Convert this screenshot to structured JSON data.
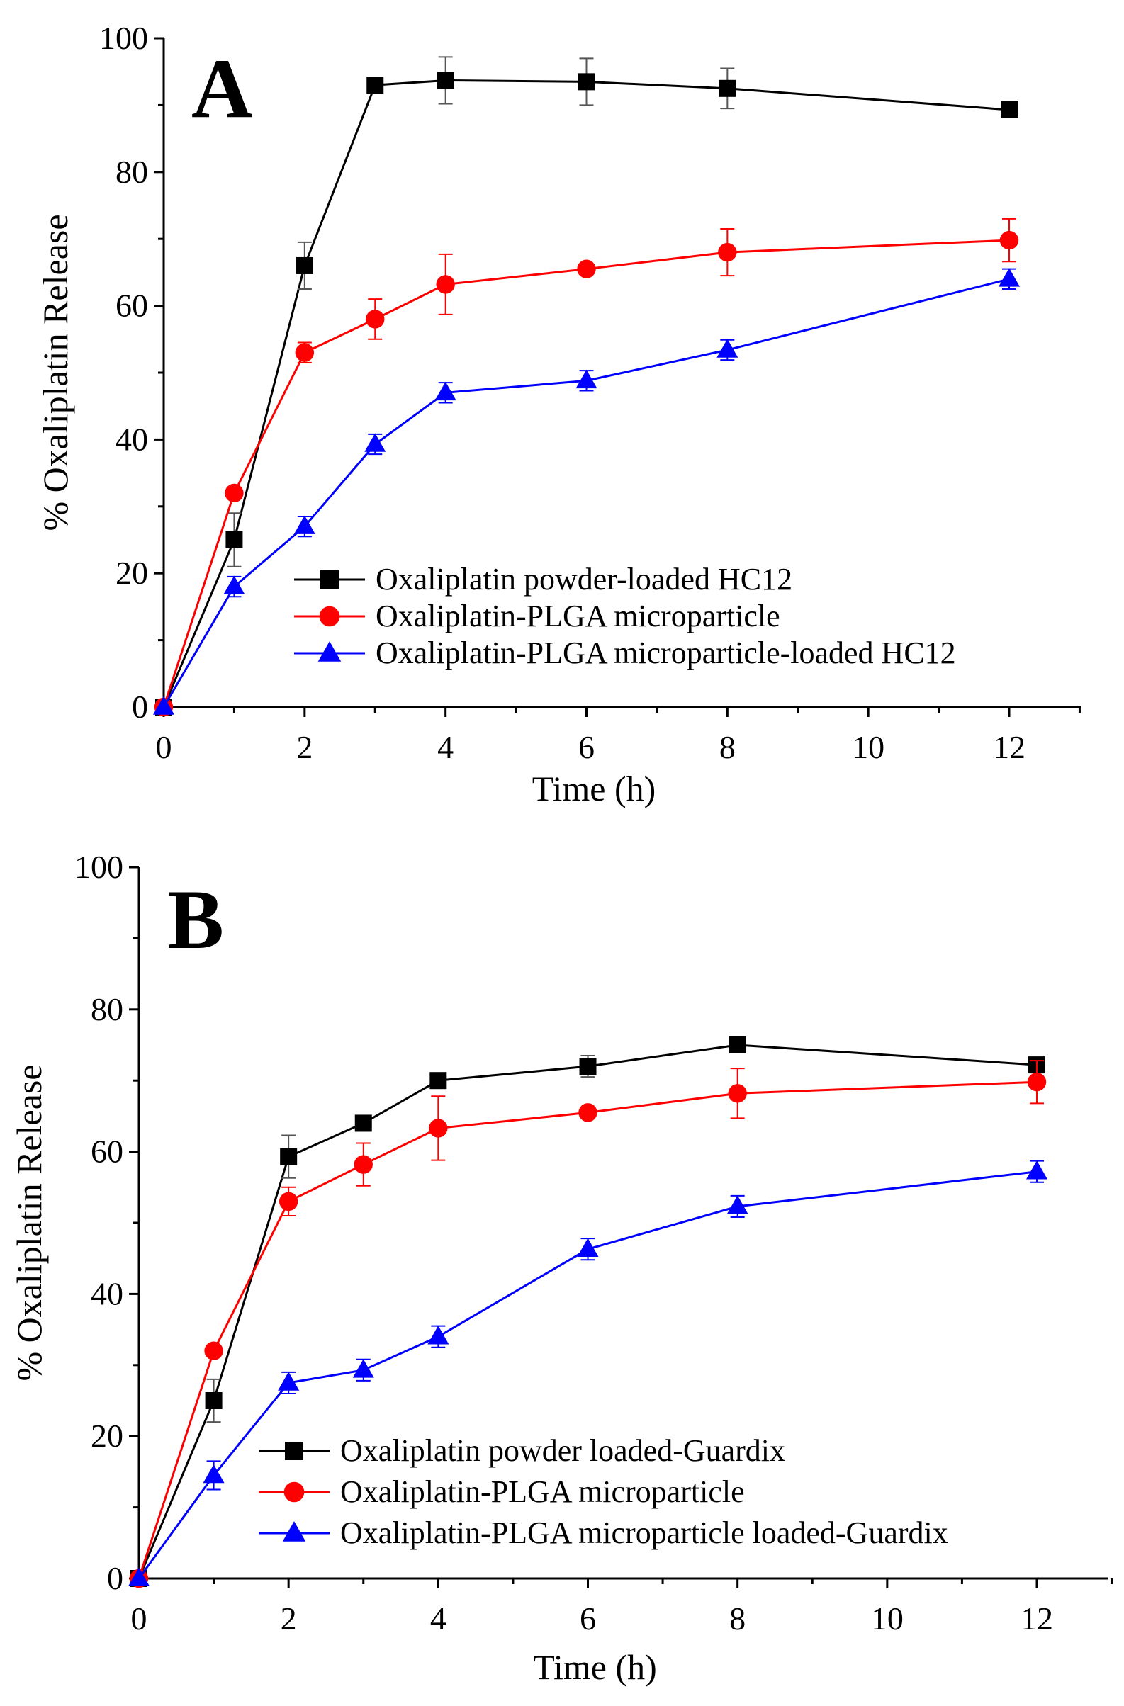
{
  "chart_data": [
    {
      "type": "line",
      "panel_label": "A",
      "xlabel": "Time (h)",
      "ylabel": "% Oxaliplatin Release",
      "xlim": [
        0,
        13
      ],
      "ylim": [
        0,
        100
      ],
      "xticks": [
        0,
        2,
        4,
        6,
        8,
        10,
        12
      ],
      "yticks": [
        0,
        20,
        40,
        60,
        80,
        100
      ],
      "legend_position": "bottom-center",
      "series": [
        {
          "name": "Oxaliplatin powder-loaded HC12",
          "color": "#000000",
          "marker": "square",
          "x": [
            0,
            1,
            2,
            3,
            4,
            6,
            8,
            12
          ],
          "y": [
            0,
            25,
            66,
            93,
            93.7,
            93.5,
            92.5,
            89.3
          ],
          "err": [
            0,
            4,
            3.5,
            0.5,
            3.5,
            3.5,
            3,
            0.5
          ]
        },
        {
          "name": "Oxaliplatin-PLGA microparticle",
          "color": "#ff0000",
          "marker": "circle",
          "x": [
            0,
            1,
            2,
            3,
            4,
            6,
            8,
            12
          ],
          "y": [
            0,
            32,
            53,
            58,
            63.2,
            65.5,
            68,
            69.8
          ],
          "err": [
            0,
            0.5,
            1.5,
            3,
            4.5,
            0.5,
            3.5,
            3.2
          ]
        },
        {
          "name": "Oxaliplatin-PLGA microparticle-loaded HC12",
          "color": "#0000ff",
          "marker": "triangle",
          "x": [
            0,
            1,
            2,
            3,
            4,
            6,
            8,
            12
          ],
          "y": [
            0,
            18,
            27,
            39.3,
            47,
            48.8,
            53.4,
            64
          ],
          "err": [
            0,
            1.5,
            1.5,
            1.5,
            1.5,
            1.5,
            1.5,
            1.5
          ]
        }
      ]
    },
    {
      "type": "line",
      "panel_label": "B",
      "xlabel": "Time (h)",
      "ylabel": "% Oxaliplatin Release",
      "xlim": [
        0,
        13
      ],
      "ylim": [
        0,
        100
      ],
      "xticks": [
        0,
        2,
        4,
        6,
        8,
        10,
        12
      ],
      "yticks": [
        0,
        20,
        40,
        60,
        80,
        100
      ],
      "legend_position": "bottom-center",
      "series": [
        {
          "name": "Oxaliplatin powder loaded-Guardix",
          "color": "#000000",
          "marker": "square",
          "x": [
            0,
            1,
            2,
            3,
            4,
            6,
            8,
            12
          ],
          "y": [
            0,
            25,
            59.3,
            64,
            70,
            72,
            75,
            72.2
          ],
          "err": [
            0,
            3,
            3,
            1,
            0.5,
            1.5,
            0.5,
            1
          ]
        },
        {
          "name": "Oxaliplatin-PLGA microparticle",
          "color": "#ff0000",
          "marker": "circle",
          "x": [
            0,
            1,
            2,
            3,
            4,
            6,
            8,
            12
          ],
          "y": [
            0,
            32,
            53,
            58.2,
            63.3,
            65.5,
            68.2,
            69.8
          ],
          "err": [
            0,
            0.5,
            2,
            3,
            4.5,
            0.5,
            3.5,
            3
          ]
        },
        {
          "name": "Oxaliplatin-PLGA microparticle loaded-Guardix",
          "color": "#0000ff",
          "marker": "triangle",
          "x": [
            0,
            1,
            2,
            3,
            4,
            6,
            8,
            12
          ],
          "y": [
            0,
            14.5,
            27.5,
            29.3,
            34,
            46.3,
            52.3,
            57.2
          ],
          "err": [
            0,
            2,
            1.5,
            1.5,
            1.5,
            1.5,
            1.5,
            1.5
          ]
        }
      ]
    }
  ]
}
